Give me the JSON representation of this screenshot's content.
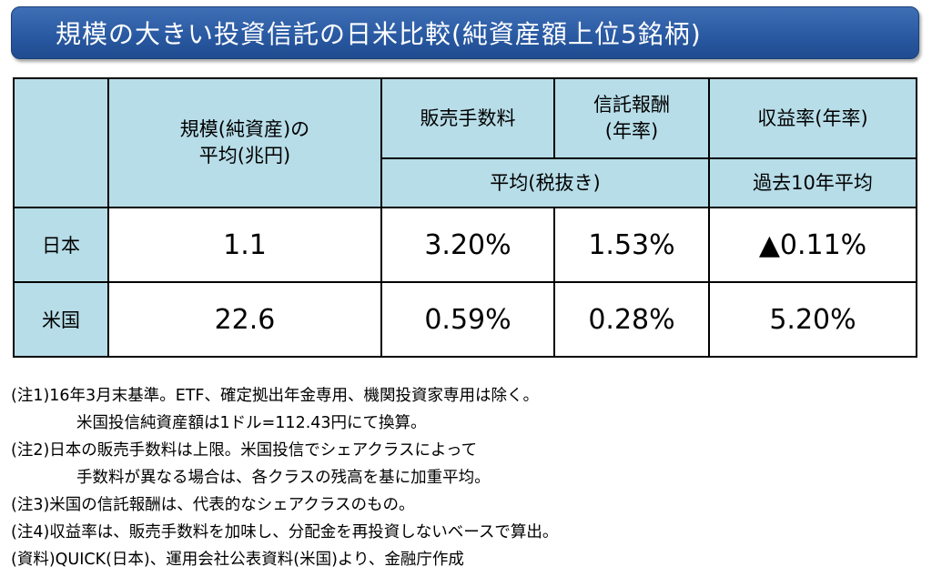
{
  "title": "規模の大きい投資信託の日米比較(純資産額上位5銘柄)",
  "table": {
    "header": {
      "scale_line1": "規模(純資産)の",
      "scale_line2": "平均(兆円)",
      "sales_fee": "販売手数料",
      "trust_fee_line1": "信託報酬",
      "trust_fee_line2": "(年率)",
      "return_rate": "収益率(年率)",
      "avg_excl_tax": "平均(税抜き)",
      "past_10y_avg": "過去10年平均"
    },
    "rows": [
      {
        "country": "日本",
        "scale": "1.1",
        "sales_fee": "3.20%",
        "trust_fee": "1.53%",
        "return_rate": "▲0.11%"
      },
      {
        "country": "米国",
        "scale": "22.6",
        "sales_fee": "0.59%",
        "trust_fee": "0.28%",
        "return_rate": "5.20%"
      }
    ]
  },
  "notes": {
    "n1_a": "(注1)16年3月末基準。ETF、確定拠出年金専用、機関投資家専用は除く。",
    "n1_b": "米国投信純資産額は1ドル=112.43円にて換算。",
    "n2_a": "(注2)日本の販売手数料は上限。米国投信でシェアクラスによって",
    "n2_b": "手数料が異なる場合は、各クラスの残高を基に加重平均。",
    "n3": "(注3)米国の信託報酬は、代表的なシェアクラスのもの。",
    "n4": "(注4)収益率は、販売手数料を加味し、分配金を再投資しないベースで算出。",
    "src": "(資料)QUICK(日本)、運用会社公表資料(米国)より、金融庁作成"
  },
  "colors": {
    "title_bar": "#2a5aa3",
    "header_fill": "#b7dde8"
  }
}
